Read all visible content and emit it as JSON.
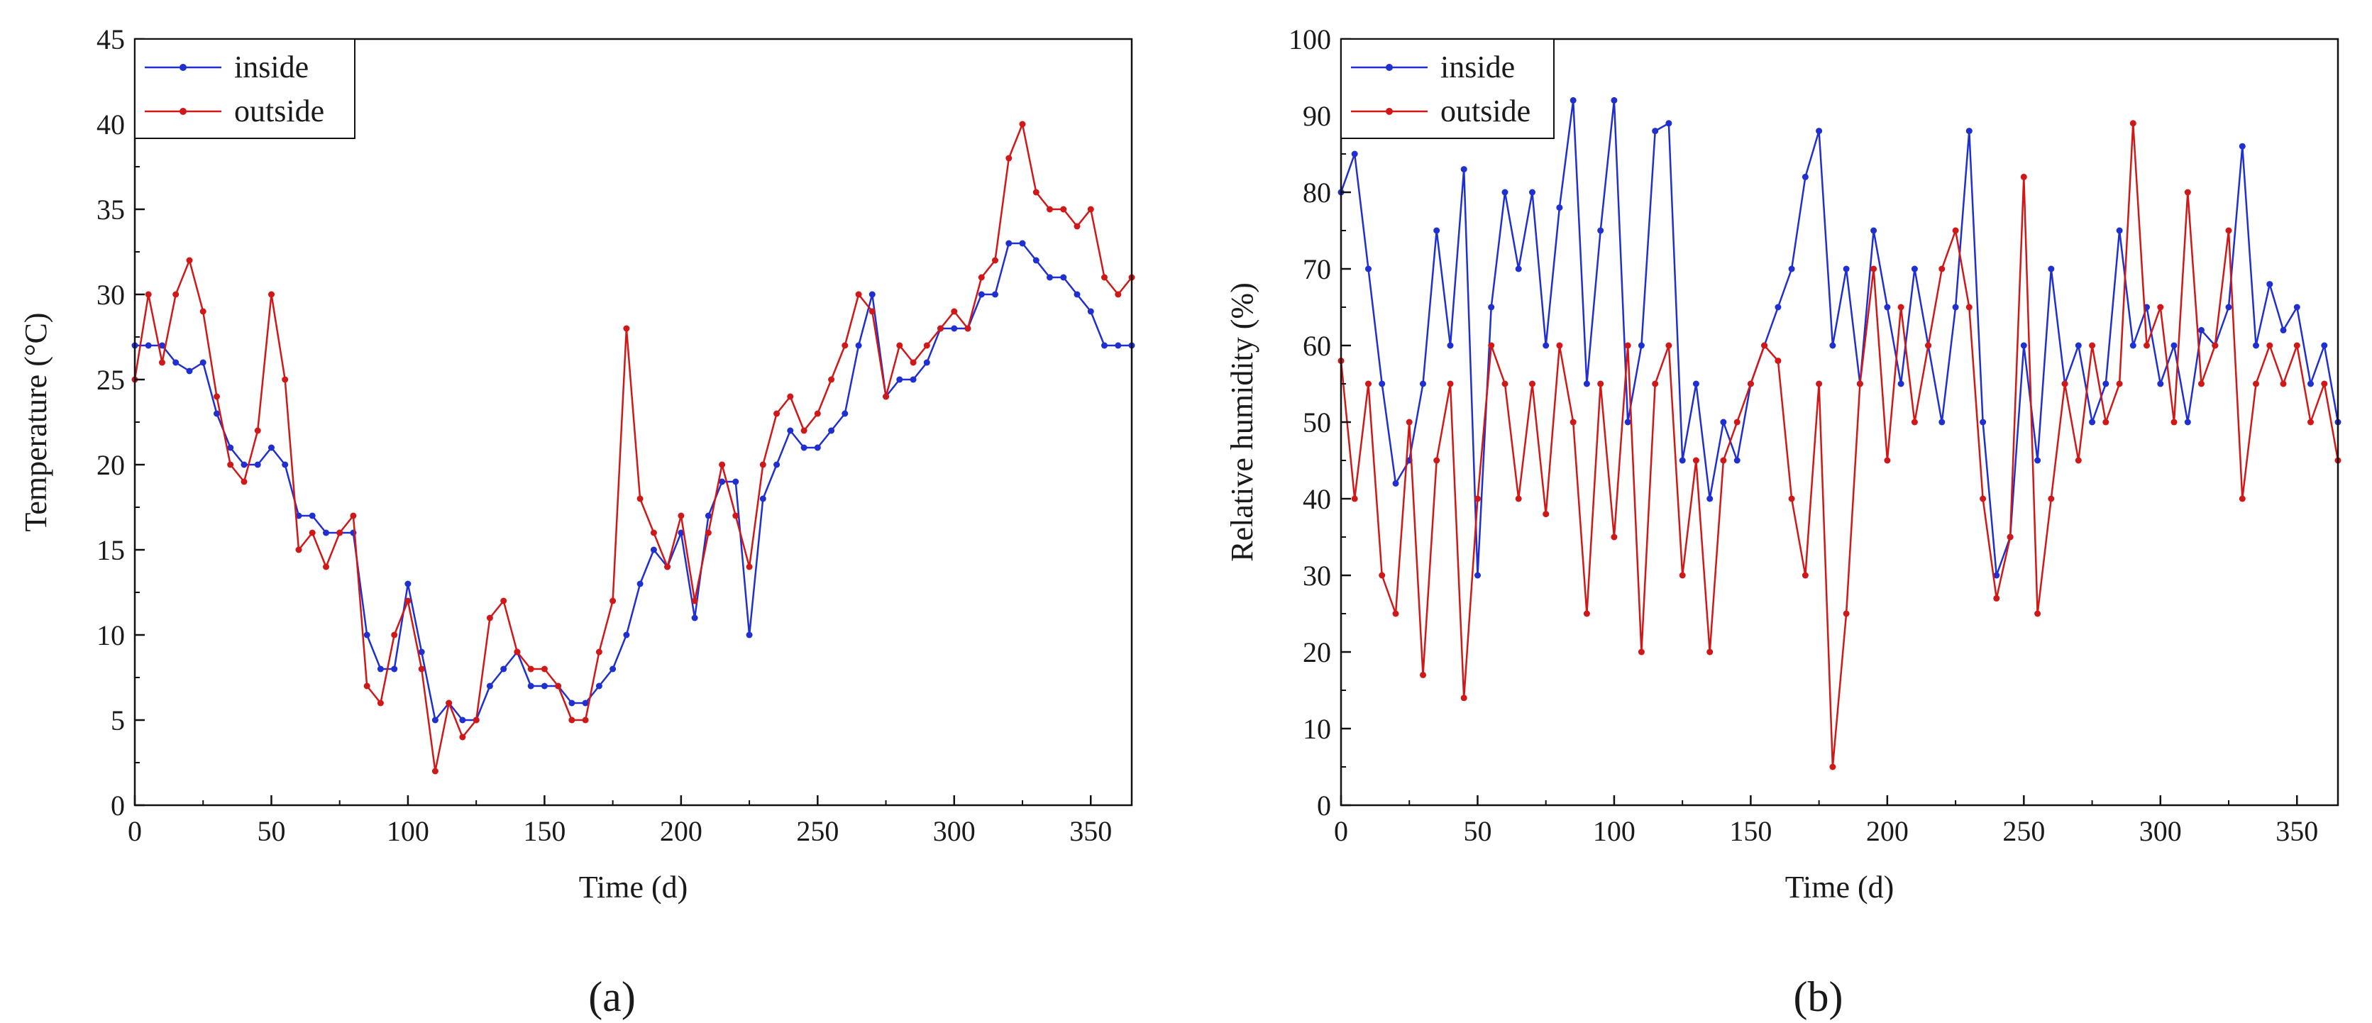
{
  "chart_data": [
    {
      "type": "line",
      "panel_label": "(a)",
      "title": "",
      "xlabel": "Time (d)",
      "ylabel": "Temperature (°C)",
      "xlim": [
        0,
        365
      ],
      "ylim": [
        0,
        45
      ],
      "xticks": [
        0,
        50,
        100,
        150,
        200,
        250,
        300,
        350
      ],
      "yticks": [
        0,
        5,
        10,
        15,
        20,
        25,
        30,
        35,
        40,
        45
      ],
      "grid": false,
      "legend_position": "top-left",
      "series": [
        {
          "name": "inside",
          "color": "#1f2fd0",
          "x": [
            0,
            5,
            10,
            15,
            20,
            25,
            30,
            35,
            40,
            45,
            50,
            55,
            60,
            65,
            70,
            75,
            80,
            85,
            90,
            95,
            100,
            105,
            110,
            115,
            120,
            125,
            130,
            135,
            140,
            145,
            150,
            155,
            160,
            165,
            170,
            175,
            180,
            185,
            190,
            195,
            200,
            205,
            210,
            215,
            220,
            225,
            230,
            235,
            240,
            245,
            250,
            255,
            260,
            265,
            270,
            275,
            280,
            285,
            290,
            295,
            300,
            305,
            310,
            315,
            320,
            325,
            330,
            335,
            340,
            345,
            350,
            355,
            360,
            365
          ],
          "values": [
            27,
            27,
            27,
            26,
            25.5,
            26,
            23,
            21,
            20,
            20,
            21,
            20,
            17,
            17,
            16,
            16,
            16,
            10,
            8,
            8,
            13,
            9,
            5,
            6,
            5,
            5,
            7,
            8,
            9,
            7,
            7,
            7,
            6,
            6,
            7,
            8,
            10,
            13,
            15,
            14,
            16,
            11,
            17,
            19,
            19,
            10,
            18,
            20,
            22,
            21,
            21,
            22,
            23,
            27,
            30,
            24,
            25,
            25,
            26,
            28,
            28,
            28,
            30,
            30,
            33,
            33,
            32,
            31,
            31,
            30,
            29,
            27,
            27,
            27
          ]
        },
        {
          "name": "outside",
          "color": "#d01818",
          "x": [
            0,
            5,
            10,
            15,
            20,
            25,
            30,
            35,
            40,
            45,
            50,
            55,
            60,
            65,
            70,
            75,
            80,
            85,
            90,
            95,
            100,
            105,
            110,
            115,
            120,
            125,
            130,
            135,
            140,
            145,
            150,
            155,
            160,
            165,
            170,
            175,
            180,
            185,
            190,
            195,
            200,
            205,
            210,
            215,
            220,
            225,
            230,
            235,
            240,
            245,
            250,
            255,
            260,
            265,
            270,
            275,
            280,
            285,
            290,
            295,
            300,
            305,
            310,
            315,
            320,
            325,
            330,
            335,
            340,
            345,
            350,
            355,
            360,
            365
          ],
          "values": [
            25,
            30,
            26,
            30,
            32,
            29,
            24,
            20,
            19,
            22,
            30,
            25,
            15,
            16,
            14,
            16,
            17,
            7,
            6,
            10,
            12,
            8,
            2,
            6,
            4,
            5,
            11,
            12,
            9,
            8,
            8,
            7,
            5,
            5,
            9,
            12,
            28,
            18,
            16,
            14,
            17,
            12,
            16,
            20,
            17,
            14,
            20,
            23,
            24,
            22,
            23,
            25,
            27,
            30,
            29,
            24,
            27,
            26,
            27,
            28,
            29,
            28,
            31,
            32,
            38,
            40,
            36,
            35,
            35,
            34,
            35,
            31,
            30,
            31
          ]
        }
      ]
    },
    {
      "type": "line",
      "panel_label": "(b)",
      "title": "",
      "xlabel": "Time (d)",
      "ylabel": "Relative humidity (%)",
      "xlim": [
        0,
        365
      ],
      "ylim": [
        0,
        100
      ],
      "xticks": [
        0,
        50,
        100,
        150,
        200,
        250,
        300,
        350
      ],
      "yticks": [
        0,
        10,
        20,
        30,
        40,
        50,
        60,
        70,
        80,
        90,
        100
      ],
      "grid": false,
      "legend_position": "top-left",
      "series": [
        {
          "name": "inside",
          "color": "#1f2fd0",
          "x": [
            0,
            5,
            10,
            15,
            20,
            25,
            30,
            35,
            40,
            45,
            50,
            55,
            60,
            65,
            70,
            75,
            80,
            85,
            90,
            95,
            100,
            105,
            110,
            115,
            120,
            125,
            130,
            135,
            140,
            145,
            150,
            155,
            160,
            165,
            170,
            175,
            180,
            185,
            190,
            195,
            200,
            205,
            210,
            215,
            220,
            225,
            230,
            235,
            240,
            245,
            250,
            255,
            260,
            265,
            270,
            275,
            280,
            285,
            290,
            295,
            300,
            305,
            310,
            315,
            320,
            325,
            330,
            335,
            340,
            345,
            350,
            355,
            360,
            365
          ],
          "values": [
            80,
            85,
            70,
            55,
            42,
            45,
            55,
            75,
            60,
            83,
            30,
            65,
            80,
            70,
            80,
            60,
            78,
            92,
            55,
            75,
            92,
            50,
            60,
            88,
            89,
            45,
            55,
            40,
            50,
            45,
            55,
            60,
            65,
            70,
            82,
            88,
            60,
            70,
            55,
            75,
            65,
            55,
            70,
            60,
            50,
            65,
            88,
            50,
            30,
            35,
            60,
            45,
            70,
            55,
            60,
            50,
            55,
            75,
            60,
            65,
            55,
            60,
            50,
            62,
            60,
            65,
            86,
            60,
            68,
            62,
            65,
            55,
            60,
            50
          ]
        },
        {
          "name": "outside",
          "color": "#d01818",
          "x": [
            0,
            5,
            10,
            15,
            20,
            25,
            30,
            35,
            40,
            45,
            50,
            55,
            60,
            65,
            70,
            75,
            80,
            85,
            90,
            95,
            100,
            105,
            110,
            115,
            120,
            125,
            130,
            135,
            140,
            145,
            150,
            155,
            160,
            165,
            170,
            175,
            180,
            185,
            190,
            195,
            200,
            205,
            210,
            215,
            220,
            225,
            230,
            235,
            240,
            245,
            250,
            255,
            260,
            265,
            270,
            275,
            280,
            285,
            290,
            295,
            300,
            305,
            310,
            315,
            320,
            325,
            330,
            335,
            340,
            345,
            350,
            355,
            360,
            365
          ],
          "values": [
            58,
            40,
            55,
            30,
            25,
            50,
            17,
            45,
            55,
            14,
            40,
            60,
            55,
            40,
            55,
            38,
            60,
            50,
            25,
            55,
            35,
            60,
            20,
            55,
            60,
            30,
            45,
            20,
            45,
            50,
            55,
            60,
            58,
            40,
            30,
            55,
            5,
            25,
            55,
            70,
            45,
            65,
            50,
            60,
            70,
            75,
            65,
            40,
            27,
            35,
            82,
            25,
            40,
            55,
            45,
            60,
            50,
            55,
            89,
            60,
            65,
            50,
            80,
            55,
            60,
            75,
            40,
            55,
            60,
            55,
            60,
            50,
            55,
            45
          ]
        }
      ]
    }
  ]
}
